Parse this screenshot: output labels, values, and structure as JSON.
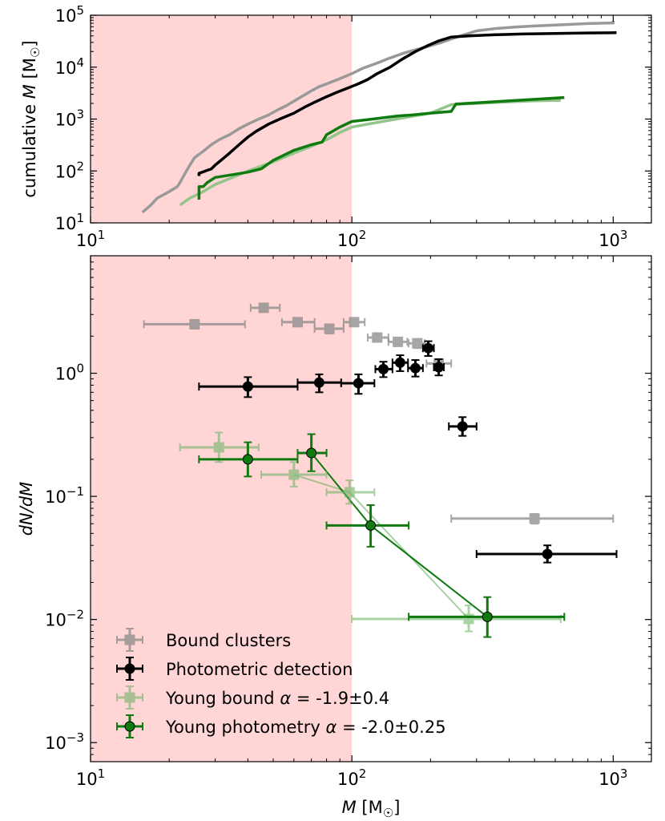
{
  "chart_data": [
    {
      "type": "line",
      "panel": "top",
      "ylabel_text": "cumulative ",
      "ylabel_var": "M",
      "ylabel_unit": " [M",
      "ylabel_close": "]",
      "xscale": "log",
      "yscale": "log",
      "xlim": [
        10,
        1400
      ],
      "ylim": [
        10,
        100000
      ],
      "x_ticks": [
        {
          "value": 10,
          "base": "10",
          "exp": "1"
        },
        {
          "value": 100,
          "base": "10",
          "exp": "2"
        },
        {
          "value": 1000,
          "base": "10",
          "exp": "3"
        }
      ],
      "y_ticks": [
        {
          "value": 10,
          "base": "10",
          "exp": "1"
        },
        {
          "value": 100,
          "base": "10",
          "exp": "2"
        },
        {
          "value": 1000,
          "base": "10",
          "exp": "3"
        },
        {
          "value": 10000,
          "base": "10",
          "exp": "4"
        },
        {
          "value": 100000,
          "base": "10",
          "exp": "5"
        }
      ],
      "shaded_region": {
        "x": [
          10,
          100
        ],
        "color": "#ffd5d5"
      },
      "series": [
        {
          "name": "Bound clusters",
          "color": "#999999",
          "width": 3.5,
          "points": [
            [
              15.8,
              16
            ],
            [
              17,
              22
            ],
            [
              18,
              30
            ],
            [
              20,
              40
            ],
            [
              21.5,
              50
            ],
            [
              22,
              60
            ],
            [
              23,
              90
            ],
            [
              24,
              130
            ],
            [
              25,
              180
            ],
            [
              27,
              240
            ],
            [
              29,
              320
            ],
            [
              31,
              400
            ],
            [
              34,
              500
            ],
            [
              37,
              650
            ],
            [
              40,
              800
            ],
            [
              44,
              1000
            ],
            [
              48,
              1200
            ],
            [
              52,
              1500
            ],
            [
              56,
              1800
            ],
            [
              60,
              2200
            ],
            [
              65,
              2800
            ],
            [
              70,
              3500
            ],
            [
              75,
              4200
            ],
            [
              82,
              5000
            ],
            [
              90,
              6000
            ],
            [
              100,
              7500
            ],
            [
              110,
              9500
            ],
            [
              125,
              12000
            ],
            [
              140,
              15000
            ],
            [
              160,
              19000
            ],
            [
              190,
              24000
            ],
            [
              220,
              30000
            ],
            [
              260,
              40000
            ],
            [
              300,
              50000
            ],
            [
              350,
              55000
            ],
            [
              420,
              59000
            ],
            [
              500,
              62000
            ],
            [
              650,
              66000
            ],
            [
              800,
              69000
            ],
            [
              1000,
              71000
            ],
            [
              1000,
              78000
            ]
          ]
        },
        {
          "name": "Photometric detection",
          "color": "#000000",
          "width": 3.5,
          "points": [
            [
              26,
              80
            ],
            [
              26,
              90
            ],
            [
              29,
              110
            ],
            [
              30,
              130
            ],
            [
              32,
              170
            ],
            [
              34,
              220
            ],
            [
              37,
              320
            ],
            [
              40,
              450
            ],
            [
              43,
              580
            ],
            [
              48,
              800
            ],
            [
              53,
              1000
            ],
            [
              60,
              1300
            ],
            [
              66,
              1700
            ],
            [
              72,
              2100
            ],
            [
              80,
              2700
            ],
            [
              88,
              3300
            ],
            [
              97,
              4000
            ],
            [
              105,
              4700
            ],
            [
              115,
              5800
            ],
            [
              125,
              7500
            ],
            [
              140,
              10000
            ],
            [
              155,
              14000
            ],
            [
              175,
              20000
            ],
            [
              195,
              26000
            ],
            [
              215,
              32000
            ],
            [
              240,
              38000
            ],
            [
              280,
              40000
            ],
            [
              350,
              42000
            ],
            [
              450,
              43500
            ],
            [
              600,
              44500
            ],
            [
              800,
              45500
            ],
            [
              1030,
              46000
            ]
          ]
        },
        {
          "name": "Young bound",
          "color": "#93c48b",
          "width": 3.5,
          "points": [
            [
              22,
              22
            ],
            [
              24,
              30
            ],
            [
              27,
              40
            ],
            [
              30,
              55
            ],
            [
              35,
              75
            ],
            [
              40,
              100
            ],
            [
              50,
              150
            ],
            [
              60,
              220
            ],
            [
              70,
              300
            ],
            [
              80,
              400
            ],
            [
              90,
              550
            ],
            [
              100,
              700
            ],
            [
              115,
              800
            ],
            [
              140,
              950
            ],
            [
              165,
              1100
            ],
            [
              200,
              1300
            ],
            [
              240,
              1900
            ],
            [
              300,
              2000
            ],
            [
              400,
              2150
            ],
            [
              500,
              2250
            ],
            [
              630,
              2300
            ]
          ]
        },
        {
          "name": "Young photometry",
          "color": "#107c10",
          "width": 3.5,
          "points": [
            [
              26,
              28
            ],
            [
              26,
              50
            ],
            [
              27,
              50
            ],
            [
              28,
              60
            ],
            [
              30,
              75
            ],
            [
              35,
              85
            ],
            [
              40,
              95
            ],
            [
              45,
              110
            ],
            [
              50,
              160
            ],
            [
              60,
              250
            ],
            [
              70,
              320
            ],
            [
              77,
              360
            ],
            [
              80,
              500
            ],
            [
              90,
              700
            ],
            [
              100,
              900
            ],
            [
              120,
              1000
            ],
            [
              150,
              1150
            ],
            [
              170,
              1200
            ],
            [
              200,
              1300
            ],
            [
              240,
              1400
            ],
            [
              250,
              1950
            ],
            [
              300,
              2050
            ],
            [
              400,
              2250
            ],
            [
              500,
              2400
            ],
            [
              650,
              2600
            ]
          ]
        }
      ]
    },
    {
      "type": "scatter",
      "panel": "bottom",
      "xlabel_var": "M",
      "xlabel_unit": " [M",
      "xlabel_close": "]",
      "ylabel_text": "dN/dM",
      "xscale": "log",
      "yscale": "log",
      "xlim": [
        10,
        1400
      ],
      "ylim": [
        0.0007,
        9
      ],
      "x_ticks": [
        {
          "value": 10,
          "base": "10",
          "exp": "1"
        },
        {
          "value": 100,
          "base": "10",
          "exp": "2"
        },
        {
          "value": 1000,
          "base": "10",
          "exp": "3"
        }
      ],
      "y_ticks": [
        {
          "value": 0.001,
          "base": "10",
          "exp": "−3"
        },
        {
          "value": 0.01,
          "base": "10",
          "exp": "−2"
        },
        {
          "value": 0.1,
          "base": "10",
          "exp": "−1"
        },
        {
          "value": 1,
          "base": "10",
          "exp": "0"
        }
      ],
      "shaded_region": {
        "x": [
          10,
          100
        ],
        "color": "#ffd5d5"
      },
      "legend_position": "lower-left",
      "series": [
        {
          "name": "Bound clusters",
          "color": "#8a8a8a",
          "marker": "square",
          "opacity": 0.75,
          "points": [
            {
              "x": 25,
              "y": 2.5,
              "xerr": [
                16,
                39
              ],
              "yerr": [
                2.3,
                2.7
              ]
            },
            {
              "x": 46,
              "y": 3.4,
              "xerr": [
                41,
                53
              ],
              "yerr": [
                3.15,
                3.65
              ]
            },
            {
              "x": 62,
              "y": 2.6,
              "xerr": [
                54,
                72
              ],
              "yerr": [
                2.4,
                2.8
              ]
            },
            {
              "x": 82,
              "y": 2.3,
              "xerr": [
                72,
                93
              ],
              "yerr": [
                2.1,
                2.5
              ]
            },
            {
              "x": 102,
              "y": 2.6,
              "xerr": [
                93,
                112
              ],
              "yerr": [
                2.42,
                2.8
              ]
            },
            {
              "x": 125,
              "y": 1.95,
              "xerr": [
                115,
                138
              ],
              "yerr": [
                1.8,
                2.1
              ]
            },
            {
              "x": 150,
              "y": 1.8,
              "xerr": [
                138,
                163
              ],
              "yerr": [
                1.66,
                1.94
              ]
            },
            {
              "x": 178,
              "y": 1.75,
              "xerr": [
                165,
                190
              ],
              "yerr": [
                1.6,
                1.9
              ]
            },
            {
              "x": 215,
              "y": 1.2,
              "xerr": [
                193,
                240
              ],
              "yerr": [
                1.1,
                1.3
              ]
            },
            {
              "x": 500,
              "y": 0.066,
              "xerr": [
                240,
                1000
              ],
              "yerr": [
                0.06,
                0.072
              ]
            }
          ]
        },
        {
          "name": "Photometric detection",
          "color": "#000000",
          "marker": "circle",
          "opacity": 1,
          "points": [
            {
              "x": 40,
              "y": 0.78,
              "xerr": [
                26,
                62
              ],
              "yerr": [
                0.64,
                0.93
              ]
            },
            {
              "x": 75,
              "y": 0.84,
              "xerr": [
                62,
                91
              ],
              "yerr": [
                0.7,
                0.98
              ]
            },
            {
              "x": 106,
              "y": 0.83,
              "xerr": [
                91,
                122
              ],
              "yerr": [
                0.68,
                0.98
              ]
            },
            {
              "x": 132,
              "y": 1.08,
              "xerr": [
                123,
                143
              ],
              "yerr": [
                0.93,
                1.24
              ]
            },
            {
              "x": 153,
              "y": 1.22,
              "xerr": [
                143,
                164
              ],
              "yerr": [
                1.04,
                1.4
              ]
            },
            {
              "x": 175,
              "y": 1.1,
              "xerr": [
                164,
                187
              ],
              "yerr": [
                0.94,
                1.28
              ]
            },
            {
              "x": 196,
              "y": 1.6,
              "xerr": [
                187,
                206
              ],
              "yerr": [
                1.38,
                1.82
              ]
            },
            {
              "x": 215,
              "y": 1.12,
              "xerr": [
                206,
                225
              ],
              "yerr": [
                0.96,
                1.3
              ]
            },
            {
              "x": 265,
              "y": 0.37,
              "xerr": [
                235,
                300
              ],
              "yerr": [
                0.31,
                0.44
              ]
            },
            {
              "x": 560,
              "y": 0.034,
              "xerr": [
                300,
                1030
              ],
              "yerr": [
                0.029,
                0.04
              ]
            }
          ]
        },
        {
          "name": "Young bound",
          "color": "#6fb468",
          "marker": "square",
          "opacity": 0.6,
          "fit_line": true,
          "fit_width": 2,
          "points": [
            {
              "x": 31,
              "y": 0.25,
              "xerr": [
                22,
                44
              ],
              "yerr": [
                0.19,
                0.33
              ]
            },
            {
              "x": 60,
              "y": 0.15,
              "xerr": [
                45,
                80
              ],
              "yerr": [
                0.12,
                0.19
              ]
            },
            {
              "x": 98,
              "y": 0.108,
              "xerr": [
                80,
                122
              ],
              "yerr": [
                0.087,
                0.135
              ]
            },
            {
              "x": 280,
              "y": 0.0101,
              "xerr": [
                100,
                630
              ],
              "yerr": [
                0.008,
                0.013
              ]
            }
          ]
        },
        {
          "name": "Young photometry",
          "color": "#0f7a0f",
          "marker": "circle",
          "opacity": 1,
          "fit_line": true,
          "fit_width": 2,
          "points": [
            {
              "x": 40,
              "y": 0.2,
              "xerr": [
                26,
                62
              ],
              "yerr": [
                0.145,
                0.275
              ]
            },
            {
              "x": 70,
              "y": 0.225,
              "xerr": [
                62,
                80
              ],
              "yerr": [
                0.16,
                0.32
              ]
            },
            {
              "x": 118,
              "y": 0.058,
              "xerr": [
                80,
                165
              ],
              "yerr": [
                0.039,
                0.085
              ]
            },
            {
              "x": 330,
              "y": 0.0105,
              "xerr": [
                165,
                650
              ],
              "yerr": [
                0.0072,
                0.0152
              ]
            }
          ]
        }
      ],
      "legend": [
        {
          "label": "Bound clusters",
          "alpha_text": "",
          "series": 0
        },
        {
          "label": "Photometric detection",
          "alpha_text": "",
          "series": 1
        },
        {
          "label": "Young bound ",
          "alpha_symbol": "α",
          "alpha_text": " = -1.9±0.4",
          "series": 2
        },
        {
          "label": "Young photometry ",
          "alpha_symbol": "α",
          "alpha_text": " = -2.0±0.25",
          "series": 3
        }
      ]
    }
  ]
}
